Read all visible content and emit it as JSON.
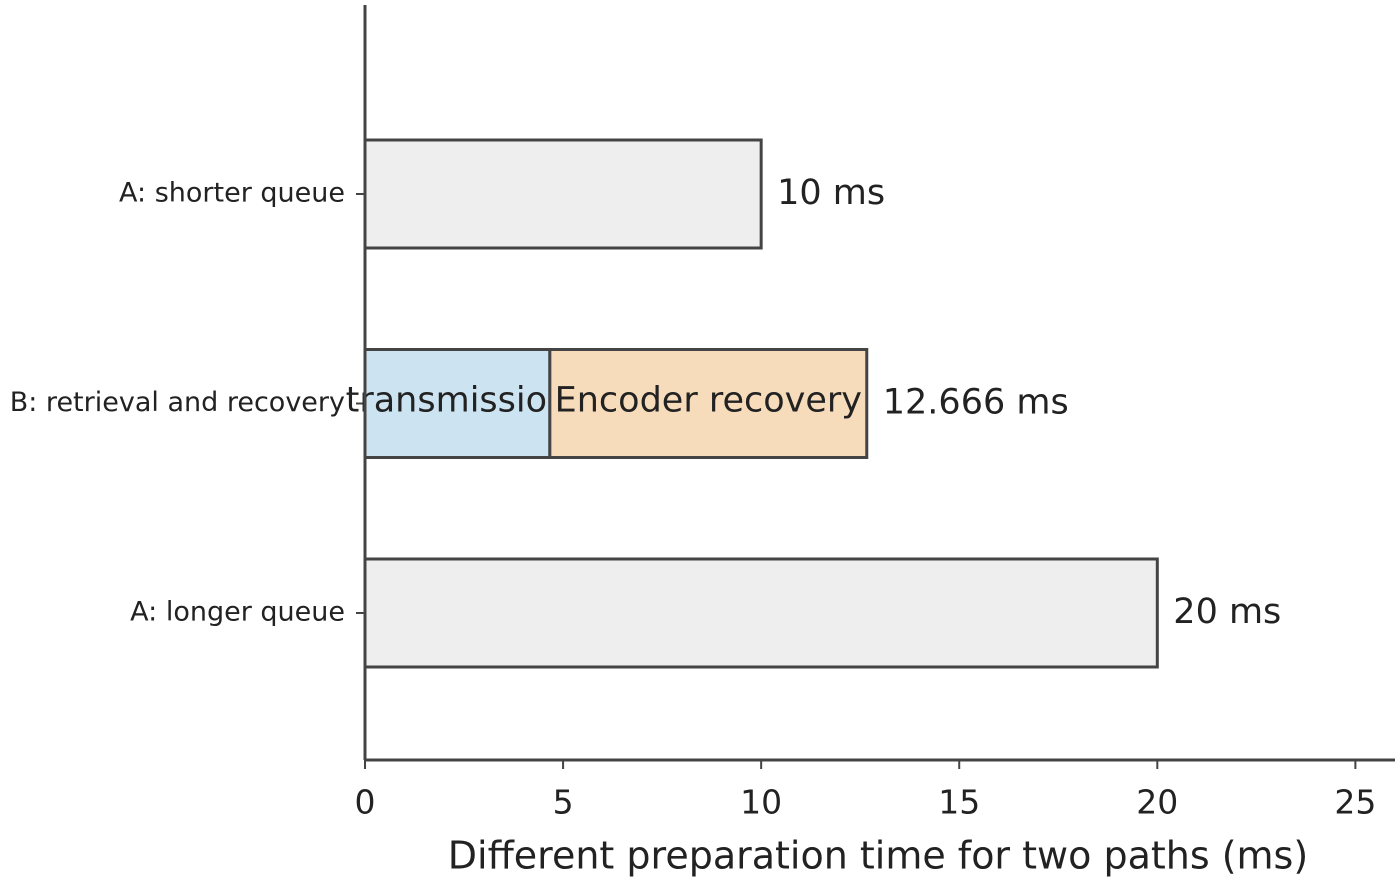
{
  "chart_data": {
    "type": "barh",
    "xlabel": "Different preparation time for two paths (ms)",
    "categories": [
      "A: shorter queue",
      "B: retrieval and recovery",
      "A: longer queue"
    ],
    "series": [
      {
        "color": "#eeeeee",
        "values": [
          10,
          null,
          20
        ],
        "value_labels": [
          "10 ms",
          null,
          "20 ms"
        ]
      },
      {
        "name": "transmission",
        "color": "#cce3f1",
        "values": [
          null,
          4.666,
          null
        ]
      },
      {
        "name": "Encoder recovery",
        "color": "#f7dcbc",
        "values": [
          null,
          8,
          null
        ]
      }
    ],
    "total_labels": [
      null,
      "12.666 ms",
      null
    ],
    "stacked": true,
    "xlim": [
      0,
      26
    ],
    "xticks": [
      0,
      5,
      10,
      15,
      20,
      25
    ],
    "grid": false
  }
}
